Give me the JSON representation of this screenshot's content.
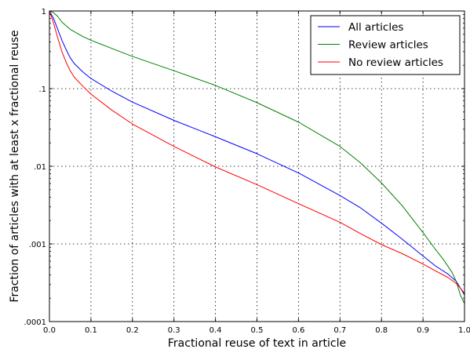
{
  "chart_data": {
    "type": "line",
    "xlabel": "Fractional reuse of text in article",
    "ylabel": "Fraction of articles with at least x fractional reuse",
    "xlim": [
      0.0,
      1.0
    ],
    "ylim": [
      0.0001,
      1
    ],
    "yscale": "log",
    "grid": true,
    "legend_position": "top-right",
    "x_ticks": [
      {
        "value": 0.0,
        "label": "0.0"
      },
      {
        "value": 0.1,
        "label": "0.1"
      },
      {
        "value": 0.2,
        "label": "0.2"
      },
      {
        "value": 0.3,
        "label": "0.3"
      },
      {
        "value": 0.4,
        "label": "0.4"
      },
      {
        "value": 0.5,
        "label": "0.5"
      },
      {
        "value": 0.6,
        "label": "0.6"
      },
      {
        "value": 0.7,
        "label": "0.7"
      },
      {
        "value": 0.8,
        "label": "0.8"
      },
      {
        "value": 0.9,
        "label": "0.9"
      },
      {
        "value": 1.0,
        "label": "1.0"
      }
    ],
    "y_ticks": [
      {
        "value": 1,
        "label": "1"
      },
      {
        "value": 0.1,
        "label": ".1"
      },
      {
        "value": 0.01,
        "label": ".01"
      },
      {
        "value": 0.001,
        "label": ".001"
      },
      {
        "value": 0.0001,
        "label": ".0001"
      }
    ],
    "series": [
      {
        "name": "All articles",
        "color": "#0000ff",
        "x": [
          0,
          0.01,
          0.02,
          0.03,
          0.04,
          0.05,
          0.06,
          0.08,
          0.1,
          0.15,
          0.2,
          0.3,
          0.4,
          0.5,
          0.6,
          0.7,
          0.75,
          0.8,
          0.85,
          0.9,
          0.93,
          0.96,
          0.98,
          0.99,
          1.0
        ],
        "y": [
          1.0,
          0.8,
          0.58,
          0.42,
          0.32,
          0.25,
          0.21,
          0.165,
          0.135,
          0.093,
          0.067,
          0.039,
          0.024,
          0.0145,
          0.0082,
          0.0042,
          0.0029,
          0.00185,
          0.00115,
          0.0007,
          0.00052,
          0.00041,
          0.00033,
          0.00027,
          0.00022
        ]
      },
      {
        "name": "Review articles",
        "color": "#008000",
        "x": [
          0,
          0.01,
          0.02,
          0.03,
          0.05,
          0.08,
          0.1,
          0.15,
          0.2,
          0.3,
          0.4,
          0.5,
          0.6,
          0.7,
          0.75,
          0.8,
          0.85,
          0.9,
          0.93,
          0.95,
          0.97,
          0.98,
          0.99,
          1.0
        ],
        "y": [
          1.0,
          0.95,
          0.85,
          0.72,
          0.58,
          0.47,
          0.42,
          0.33,
          0.26,
          0.17,
          0.11,
          0.066,
          0.037,
          0.018,
          0.011,
          0.0061,
          0.0031,
          0.0014,
          0.00085,
          0.00062,
          0.00043,
          0.00033,
          0.00022,
          0.00017
        ]
      },
      {
        "name": "No review articles",
        "color": "#ff0000",
        "x": [
          0,
          0.01,
          0.02,
          0.03,
          0.04,
          0.05,
          0.06,
          0.08,
          0.1,
          0.15,
          0.2,
          0.3,
          0.4,
          0.5,
          0.6,
          0.7,
          0.75,
          0.8,
          0.85,
          0.9,
          0.93,
          0.96,
          0.98,
          0.99,
          1.0
        ],
        "y": [
          1.0,
          0.7,
          0.45,
          0.3,
          0.22,
          0.17,
          0.14,
          0.108,
          0.085,
          0.053,
          0.035,
          0.018,
          0.0098,
          0.0058,
          0.0033,
          0.0019,
          0.00135,
          0.00098,
          0.00075,
          0.00055,
          0.00045,
          0.00037,
          0.00031,
          0.00027,
          0.00023
        ]
      }
    ]
  }
}
